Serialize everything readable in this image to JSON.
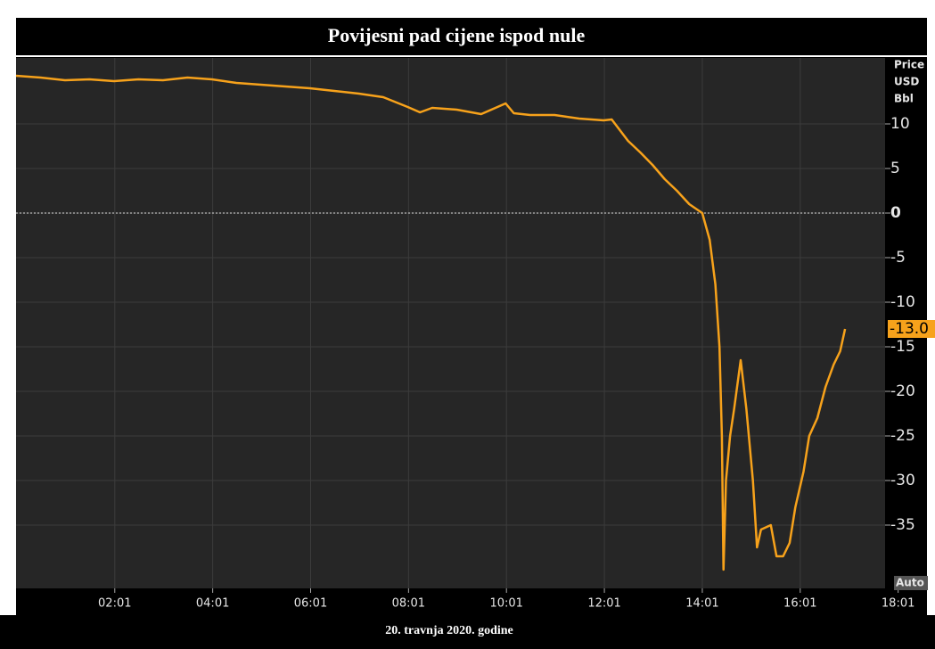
{
  "chart_data": {
    "type": "line",
    "title": "Povijesni pad cijene ispod nule",
    "caption": "20. travnja 2020. godine",
    "y_label": [
      "Price",
      "USD",
      "Bbl"
    ],
    "mode_label": "Auto",
    "last_label": "-13.0",
    "x": [
      "00:00",
      "00:30",
      "01:00",
      "01:30",
      "02:00",
      "02:30",
      "03:00",
      "03:30",
      "04:00",
      "04:30",
      "05:00",
      "05:30",
      "06:00",
      "06:30",
      "07:00",
      "07:30",
      "08:00",
      "08:15",
      "08:30",
      "09:00",
      "09:30",
      "10:00",
      "10:10",
      "10:30",
      "11:00",
      "11:30",
      "12:00",
      "12:10",
      "12:30",
      "12:45",
      "13:00",
      "13:15",
      "13:30",
      "13:45",
      "14:01",
      "14:10",
      "14:17",
      "14:22",
      "14:25",
      "14:27",
      "14:30",
      "14:35",
      "14:40",
      "14:48",
      "14:55",
      "15:03",
      "15:08",
      "15:13",
      "15:25",
      "15:32",
      "15:40",
      "15:48",
      "15:55",
      "16:05",
      "16:12",
      "16:22",
      "16:32",
      "16:42",
      "16:50",
      "16:56"
    ],
    "series": [
      {
        "name": "Price",
        "color": "#f7a21b",
        "values": [
          15.4,
          15.2,
          14.9,
          15.0,
          14.8,
          15.0,
          14.9,
          15.2,
          15.0,
          14.6,
          14.4,
          14.2,
          14.0,
          13.7,
          13.4,
          13.0,
          11.9,
          11.3,
          11.8,
          11.6,
          11.1,
          12.3,
          11.2,
          11.0,
          11.0,
          10.6,
          10.4,
          10.5,
          8.1,
          6.8,
          5.4,
          3.8,
          2.5,
          1.0,
          0,
          -3,
          -8,
          -15,
          -25,
          -40,
          -30,
          -25,
          -22,
          -16.5,
          -22,
          -30,
          -37.5,
          -35.5,
          -35,
          -38.5,
          -38.5,
          -37,
          -33,
          -29,
          -25,
          -23,
          -19.5,
          -17,
          -15.5,
          -13
        ]
      }
    ],
    "xlim": [
      "00:00",
      "17:45"
    ],
    "xticks": [
      "02:01",
      "04:01",
      "06:01",
      "08:01",
      "10:01",
      "12:01",
      "14:01",
      "16:01",
      "18:01"
    ],
    "ylim": [
      -42.1,
      17.4
    ],
    "yticks": [
      10,
      5,
      0,
      -5,
      -10,
      -15,
      -20,
      -25,
      -30,
      -35
    ],
    "grid": true,
    "zero_line": true,
    "axis_side": "right"
  }
}
